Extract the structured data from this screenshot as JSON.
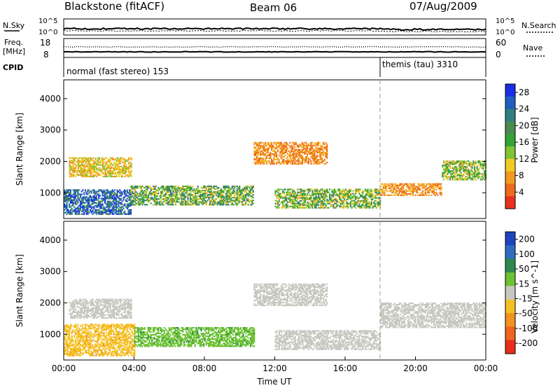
{
  "header": {
    "radar_title": "Blackstone (fitACF)",
    "beam_label": "Beam 06",
    "date_label": "07/Aug/2009"
  },
  "summary_panels": {
    "nsky_label": "N.Sky",
    "nsearch_label": "N.Search",
    "noise_tick_top": "10^5",
    "noise_tick_bottom": "10^0",
    "freq_label_line1": "Freq.",
    "freq_label_line2": "[MHz]",
    "freq_ticks": [
      "18",
      "8"
    ],
    "nave_label": "Nave",
    "nave_ticks": [
      "60",
      "0"
    ],
    "cpid_label": "CPID",
    "cpid_segments": [
      {
        "label": "normal (fast stereo) 153",
        "start_hour": 0,
        "end_hour": 18
      },
      {
        "label": "themis (tau) 3310",
        "start_hour": 18,
        "end_hour": 24
      }
    ]
  },
  "chart_data": [
    {
      "type": "heatmap",
      "title": "Power",
      "ylabel": "Slant Range [km]",
      "xlabel": "",
      "xlim": [
        0,
        24
      ],
      "ylim": [
        180,
        4600
      ],
      "yticks": [
        "1000",
        "2000",
        "3000",
        "4000"
      ],
      "colorbar": {
        "label": "Power [dB]",
        "ticks": [
          "4",
          "8",
          "12",
          "16",
          "20",
          "24",
          "28"
        ],
        "colors": [
          "#1a2ee6",
          "#1f5fbf",
          "#2f7f82",
          "#4a8a50",
          "#33a336",
          "#7fc435",
          "#f0cc22",
          "#f49a22",
          "#ee6a1e",
          "#e8331c"
        ],
        "range": [
          0,
          30
        ]
      },
      "regions": [
        {
          "t": [
            0.0,
            3.8
          ],
          "r": [
            300,
            1100
          ],
          "level": [
            18,
            30
          ]
        },
        {
          "t": [
            3.8,
            10.8
          ],
          "r": [
            600,
            1200
          ],
          "level": [
            8,
            24
          ]
        },
        {
          "t": [
            0.3,
            3.8
          ],
          "r": [
            1500,
            2100
          ],
          "level": [
            6,
            14
          ]
        },
        {
          "t": [
            10.8,
            15.0
          ],
          "r": [
            1900,
            2600
          ],
          "level": [
            3,
            10
          ]
        },
        {
          "t": [
            12.0,
            18.0
          ],
          "r": [
            500,
            1100
          ],
          "level": [
            8,
            22
          ]
        },
        {
          "t": [
            18.0,
            21.5
          ],
          "r": [
            900,
            1300
          ],
          "level": [
            4,
            10
          ]
        },
        {
          "t": [
            21.5,
            24.0
          ],
          "r": [
            1400,
            2000
          ],
          "level": [
            8,
            20
          ]
        }
      ]
    },
    {
      "type": "heatmap",
      "title": "Velocity",
      "ylabel": "Slant Range [km]",
      "xlabel": "Time UT",
      "xlim": [
        0,
        24
      ],
      "ylim": [
        180,
        4600
      ],
      "yticks": [
        "1000",
        "2000",
        "3000",
        "4000"
      ],
      "xticks": [
        "00:00",
        "04:00",
        "08:00",
        "12:00",
        "16:00",
        "20:00",
        "00:00"
      ],
      "colorbar": {
        "label": "Velocity [m s^-1]",
        "ticks": [
          "200",
          "100",
          "50",
          "15",
          "-15",
          "-50",
          "-100",
          "-200"
        ],
        "colors": [
          "#1e44c0",
          "#2f6cbf",
          "#2c8a4f",
          "#6cc232",
          "#c8c8c0",
          "#f5c122",
          "#f39322",
          "#ee6420",
          "#e82e1b"
        ],
        "range": [
          -250,
          250
        ]
      },
      "regions": [
        {
          "t": [
            0.0,
            4.0
          ],
          "r": [
            300,
            1300
          ],
          "level": [
            -100,
            -30
          ]
        },
        {
          "t": [
            4.0,
            10.8
          ],
          "r": [
            600,
            1200
          ],
          "level": [
            30,
            100
          ]
        },
        {
          "t": [
            0.3,
            3.8
          ],
          "r": [
            1500,
            2100
          ],
          "level": [
            -15,
            15
          ]
        },
        {
          "t": [
            10.8,
            15.0
          ],
          "r": [
            1900,
            2600
          ],
          "level": [
            -15,
            15
          ]
        },
        {
          "t": [
            12.0,
            18.0
          ],
          "r": [
            500,
            1100
          ],
          "level": [
            -15,
            15
          ]
        },
        {
          "t": [
            18.0,
            24.0
          ],
          "r": [
            1200,
            2000
          ],
          "level": [
            -15,
            15
          ]
        }
      ]
    }
  ]
}
